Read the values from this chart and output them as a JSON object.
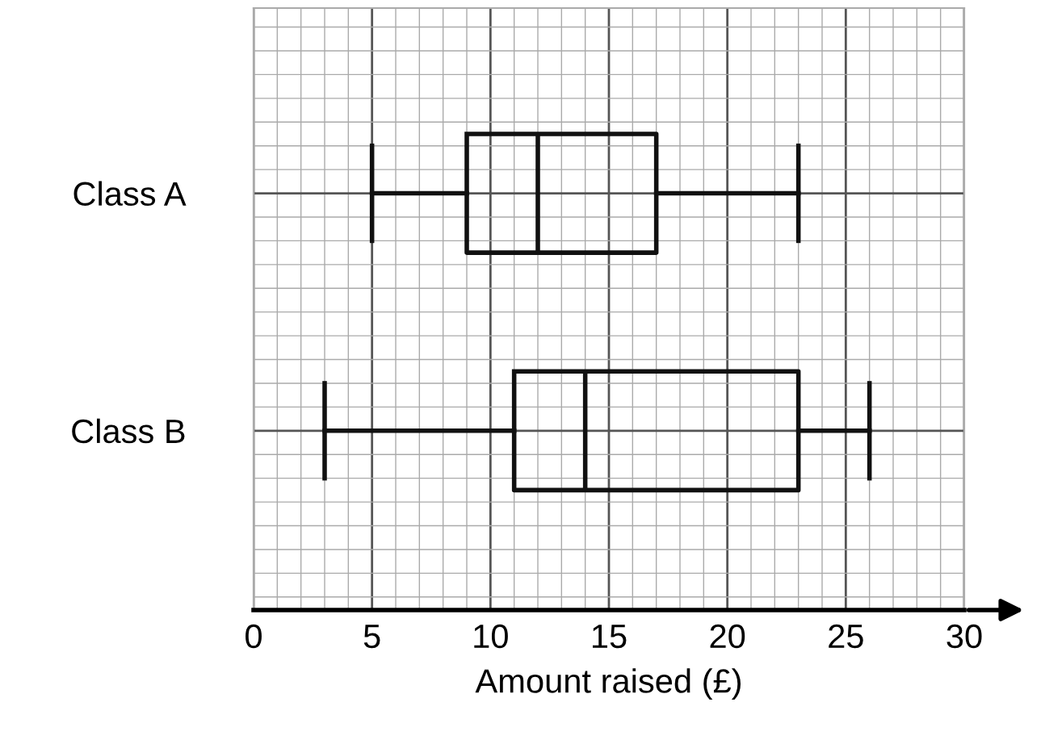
{
  "chart_data": {
    "type": "box",
    "orientation": "horizontal",
    "xlabel": "Amount raised (£)",
    "categories": [
      "Class A",
      "Class B"
    ],
    "boxes": [
      {
        "low": 5,
        "q1": 9,
        "median": 12,
        "q3": 17,
        "high": 23
      },
      {
        "low": 3,
        "q1": 11,
        "median": 14,
        "q3": 23,
        "high": 26
      }
    ],
    "xlim": [
      0,
      30
    ],
    "xticks": [
      0,
      5,
      10,
      15,
      20,
      25,
      30
    ],
    "grid": true,
    "color": "#111111"
  }
}
